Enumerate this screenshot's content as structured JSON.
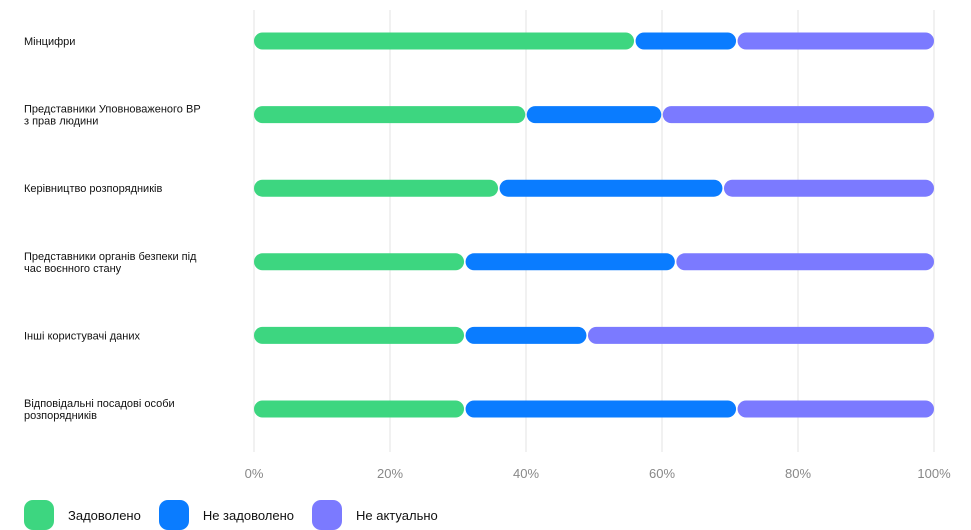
{
  "chart_data": {
    "type": "bar",
    "orientation": "horizontal",
    "stacked": "percent",
    "categories": [
      [
        "Мінцифри"
      ],
      [
        "Представники Уповноваженого ВР",
        "з прав людини"
      ],
      [
        "Керівництво розпорядників"
      ],
      [
        "Представники органів безпеки під",
        "час воєнного стану"
      ],
      [
        "Інші користувачі даних"
      ],
      [
        "Відповідальні посадові особи",
        "розпорядників"
      ]
    ],
    "series": [
      {
        "name": "Задоволено",
        "color": "#3dd680",
        "values": [
          56,
          40,
          36,
          31,
          31,
          31
        ]
      },
      {
        "name": "Не задоволено",
        "color": "#0a7cff",
        "values": [
          15,
          20,
          33,
          31,
          18,
          40
        ]
      },
      {
        "name": "Не актуально",
        "color": "#7b7aff",
        "values": [
          29,
          40,
          31,
          38,
          51,
          29
        ]
      }
    ],
    "xlim": [
      0,
      100
    ],
    "xticks": [
      "0%",
      "20%",
      "40%",
      "60%",
      "80%",
      "100%"
    ],
    "grid": true,
    "legend_position": "bottom-left"
  }
}
